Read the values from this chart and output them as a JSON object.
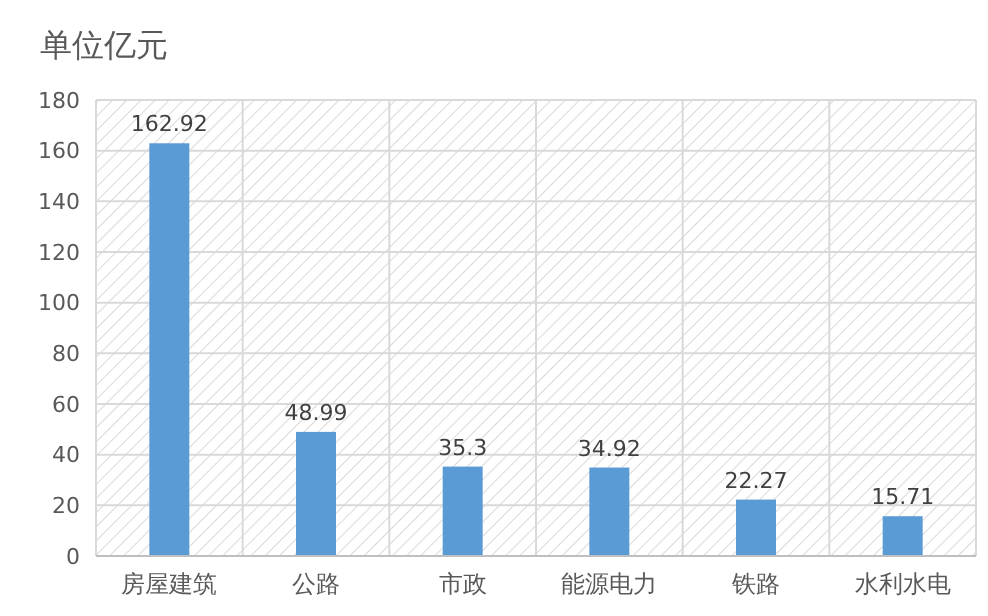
{
  "chart_data": {
    "type": "bar",
    "title": "单位亿元",
    "categories": [
      "房屋建筑",
      "公路",
      "市政",
      "能源电力",
      "铁路",
      "水利水电"
    ],
    "values": [
      162.92,
      48.99,
      35.3,
      34.92,
      22.27,
      15.71
    ],
    "color": "#5b9bd5",
    "ylim": [
      0,
      180
    ],
    "yticks": [
      0,
      20,
      40,
      60,
      80,
      100,
      120,
      140,
      160,
      180
    ],
    "grid": true,
    "data_labels": true
  }
}
